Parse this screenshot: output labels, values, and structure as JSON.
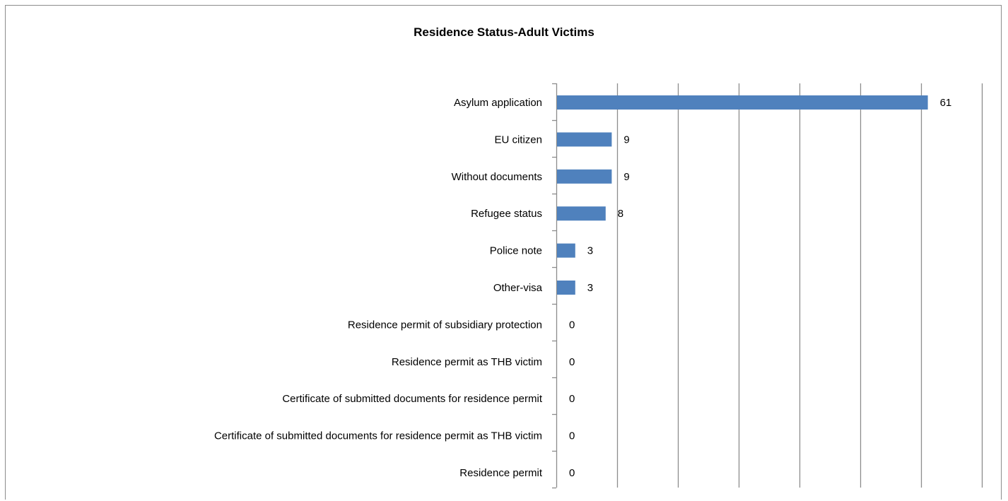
{
  "chart_data": {
    "type": "bar",
    "orientation": "horizontal",
    "title": "Residence Status-Adult Victims",
    "xlabel": "",
    "ylabel": "",
    "categories": [
      "Asylum application",
      "EU citizen",
      "Without documents",
      "Refugee status",
      "Police note",
      "Other-visa",
      "Residence permit of subsidiary protection",
      "Residence permit as THB victim",
      "Certificate of submitted documents for residence permit",
      "Certificate of submitted documents for residence permit as THB victim",
      "Residence permit"
    ],
    "values": [
      61,
      9,
      9,
      8,
      3,
      3,
      0,
      0,
      0,
      0,
      0
    ],
    "xlim": [
      0,
      70
    ],
    "x_gridlines_every": 10,
    "grid": true,
    "legend": "none",
    "data_labels": true,
    "bar_color": "#4f81bd",
    "gridline_color": "#8c8c8c"
  }
}
